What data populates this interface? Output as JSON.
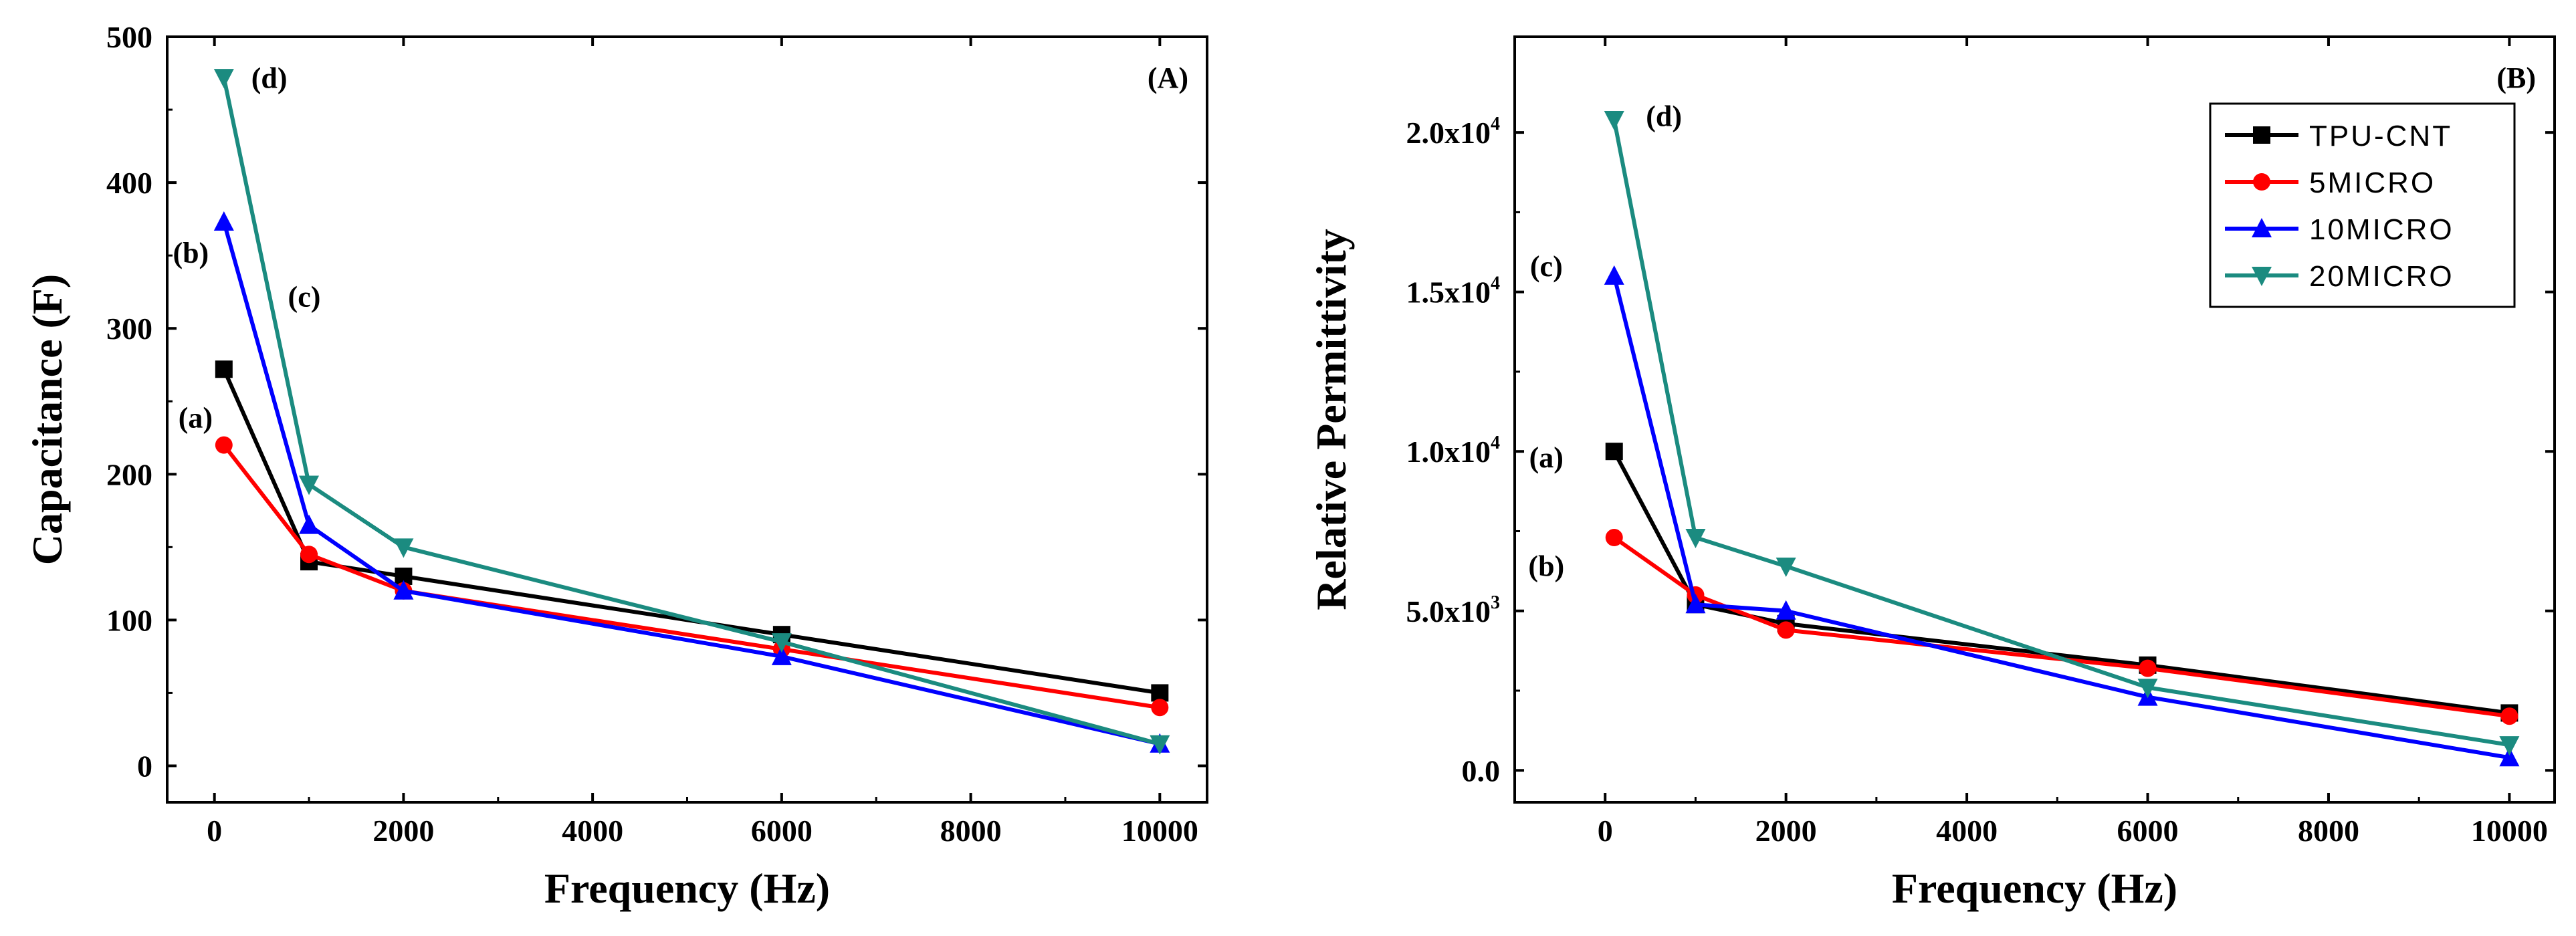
{
  "chart_data": [
    {
      "type": "line",
      "panel_label": "(A)",
      "xlabel": "Frequency (Hz)",
      "ylabel": "Capacitance (F)",
      "xlim": [
        -500,
        10500
      ],
      "ylim": [
        -25,
        500
      ],
      "xticks": [
        0,
        2000,
        4000,
        6000,
        8000,
        10000
      ],
      "xtick_labels": [
        "0",
        "2000",
        "4000",
        "6000",
        "8000",
        "10000"
      ],
      "yticks": [
        0,
        100,
        200,
        300,
        400,
        500
      ],
      "ytick_labels": [
        "0",
        "100",
        "200",
        "300",
        "400",
        "500"
      ],
      "x": [
        100,
        1000,
        2000,
        6000,
        10000
      ],
      "series": [
        {
          "name": "TPU-CNT",
          "values": [
            272,
            140,
            130,
            90,
            50
          ]
        },
        {
          "name": "5MICRO",
          "values": [
            220,
            145,
            120,
            80,
            40
          ]
        },
        {
          "name": "10MICRO",
          "values": [
            373,
            165,
            120,
            75,
            15
          ]
        },
        {
          "name": "20MICRO",
          "values": [
            472,
            193,
            150,
            85,
            15
          ]
        }
      ],
      "annotations": [
        {
          "text": "(a)",
          "x": -200,
          "y": 232
        },
        {
          "text": "(b)",
          "x": -250,
          "y": 345
        },
        {
          "text": "(c)",
          "x": 950,
          "y": 315
        },
        {
          "text": "(d)",
          "x": 580,
          "y": 465
        }
      ]
    },
    {
      "type": "line",
      "panel_label": "(B)",
      "xlabel": "Frequency (Hz)",
      "ylabel": "Relative Permittivity",
      "xlim": [
        -1000,
        10500
      ],
      "ylim": [
        -1000,
        23000
      ],
      "xticks": [
        0,
        2000,
        4000,
        6000,
        8000,
        10000
      ],
      "xtick_labels": [
        "0",
        "2000",
        "4000",
        "6000",
        "8000",
        "10000"
      ],
      "yticks": [
        0,
        5000,
        10000,
        15000,
        20000
      ],
      "ytick_labels": [
        {
          "base": "0.0",
          "exp": ""
        },
        {
          "base": "5.0x10",
          "exp": "3"
        },
        {
          "base": "1.0x10",
          "exp": "4"
        },
        {
          "base": "1.5x10",
          "exp": "4"
        },
        {
          "base": "2.0x10",
          "exp": "4"
        }
      ],
      "x": [
        100,
        1000,
        2000,
        6000,
        10000
      ],
      "series": [
        {
          "name": "TPU-CNT",
          "values": [
            10000,
            5200,
            4600,
            3300,
            1800
          ]
        },
        {
          "name": "5MICRO",
          "values": [
            7300,
            5500,
            4400,
            3200,
            1700
          ]
        },
        {
          "name": "10MICRO",
          "values": [
            15500,
            5200,
            5000,
            2300,
            400
          ]
        },
        {
          "name": "20MICRO",
          "values": [
            20400,
            7300,
            6400,
            2600,
            800
          ]
        }
      ],
      "legend": {
        "position": "top-right",
        "entries": [
          "TPU-CNT",
          "5MICRO",
          "10MICRO",
          "20MICRO"
        ]
      },
      "annotations": [
        {
          "text": "(a)",
          "x": -650,
          "y": 9500
        },
        {
          "text": "(b)",
          "x": -650,
          "y": 6100
        },
        {
          "text": "(c)",
          "x": -650,
          "y": 15500
        },
        {
          "text": "(d)",
          "x": 650,
          "y": 20200
        }
      ]
    }
  ],
  "colors": {
    "TPU-CNT": "#000000",
    "5MICRO": "#ff0000",
    "10MICRO": "#0000ff",
    "20MICRO": "#1b8b80"
  },
  "markers": {
    "TPU-CNT": "square",
    "5MICRO": "circle",
    "10MICRO": "triangle-up",
    "20MICRO": "triangle-down"
  }
}
